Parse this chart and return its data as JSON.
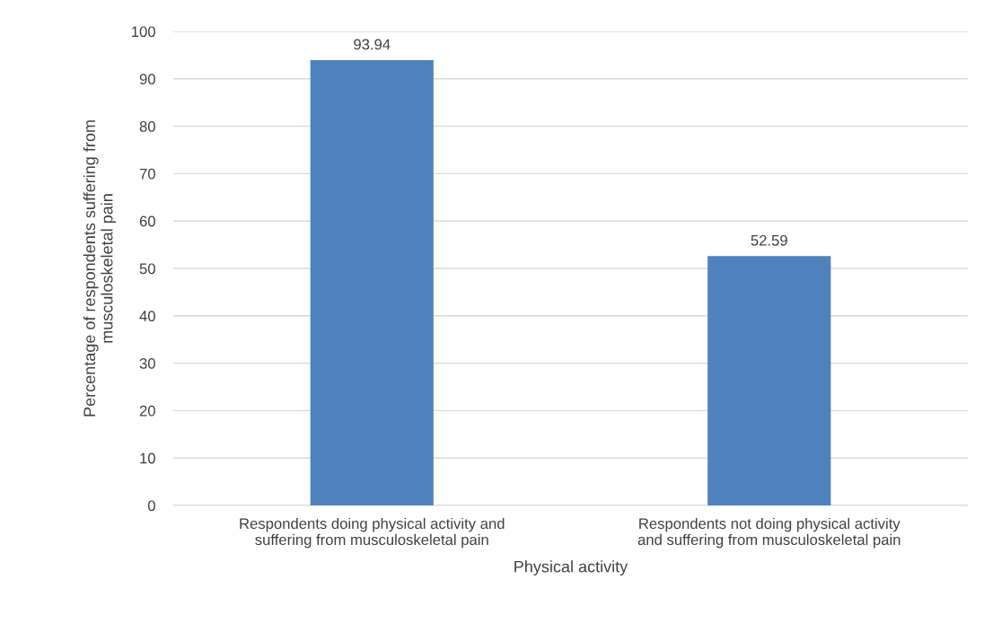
{
  "chart_data": {
    "type": "bar",
    "xlabel": "Physical activity",
    "ylabel": "Percentage of respondents suffering from\nmusculoskeletal pain",
    "categories": [
      "Respondents doing physical activity and\nsuffering from musculoskeletal pain",
      "Respondents not doing physical activity\nand suffering from musculoskeletal pain"
    ],
    "values": [
      93.94,
      52.59
    ],
    "color": "#4f81bd",
    "ylim": [
      0,
      100
    ],
    "yticks": [
      0,
      10,
      20,
      30,
      40,
      50,
      60,
      70,
      80,
      90,
      100
    ],
    "grid": "y",
    "data_labels": true
  }
}
